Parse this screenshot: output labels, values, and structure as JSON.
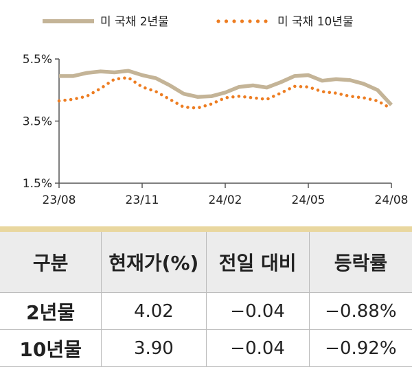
{
  "colors": {
    "series_2y": "#c4b497",
    "series_10y": "#ed7d22",
    "table_accent": "#e9d79f",
    "header_bg": "#ececec"
  },
  "chart_data": {
    "type": "line",
    "title": "",
    "xlabel": "",
    "ylabel": "",
    "ylim": [
      1.5,
      5.5
    ],
    "yticks": [
      "5.5%",
      "3.5%",
      "1.5%"
    ],
    "ytick_values": [
      5.5,
      3.5,
      1.5
    ],
    "xticks": [
      "23/08",
      "23/11",
      "24/02",
      "24/05",
      "24/08"
    ],
    "grid": false,
    "legend_position": "top",
    "series": [
      {
        "name": "미 국채 2년물",
        "style": "solid",
        "x": [
          "23/08",
          "23/08",
          "23/09",
          "23/09",
          "23/10",
          "23/10",
          "23/11",
          "23/11",
          "23/12",
          "23/12",
          "24/01",
          "24/01",
          "24/02",
          "24/02",
          "24/03",
          "24/03",
          "24/04",
          "24/04",
          "24/05",
          "24/05",
          "24/06",
          "24/06",
          "24/07",
          "24/07",
          "24/08"
        ],
        "values": [
          4.95,
          4.95,
          5.05,
          5.1,
          5.07,
          5.12,
          4.98,
          4.88,
          4.65,
          4.38,
          4.28,
          4.3,
          4.42,
          4.6,
          4.65,
          4.58,
          4.75,
          4.95,
          4.98,
          4.8,
          4.85,
          4.82,
          4.7,
          4.5,
          4.02
        ]
      },
      {
        "name": "미 국채 10년물",
        "style": "dotted",
        "x": [
          "23/08",
          "23/08",
          "23/09",
          "23/09",
          "23/10",
          "23/10",
          "23/11",
          "23/11",
          "23/12",
          "23/12",
          "24/01",
          "24/01",
          "24/02",
          "24/02",
          "24/03",
          "24/03",
          "24/04",
          "24/04",
          "24/05",
          "24/05",
          "24/06",
          "24/06",
          "24/07",
          "24/07",
          "24/08"
        ],
        "values": [
          4.15,
          4.2,
          4.3,
          4.55,
          4.85,
          4.9,
          4.6,
          4.45,
          4.2,
          3.95,
          3.92,
          4.05,
          4.25,
          4.3,
          4.25,
          4.2,
          4.4,
          4.62,
          4.6,
          4.45,
          4.4,
          4.3,
          4.25,
          4.15,
          3.9
        ]
      }
    ]
  },
  "table": {
    "headers": [
      "구분",
      "현재가(%)",
      "전일 대비",
      "등락률"
    ],
    "rows": [
      [
        "2년물",
        "4.02",
        "−0.04",
        "−0.88%"
      ],
      [
        "10년물",
        "3.90",
        "−0.04",
        "−0.92%"
      ]
    ]
  }
}
